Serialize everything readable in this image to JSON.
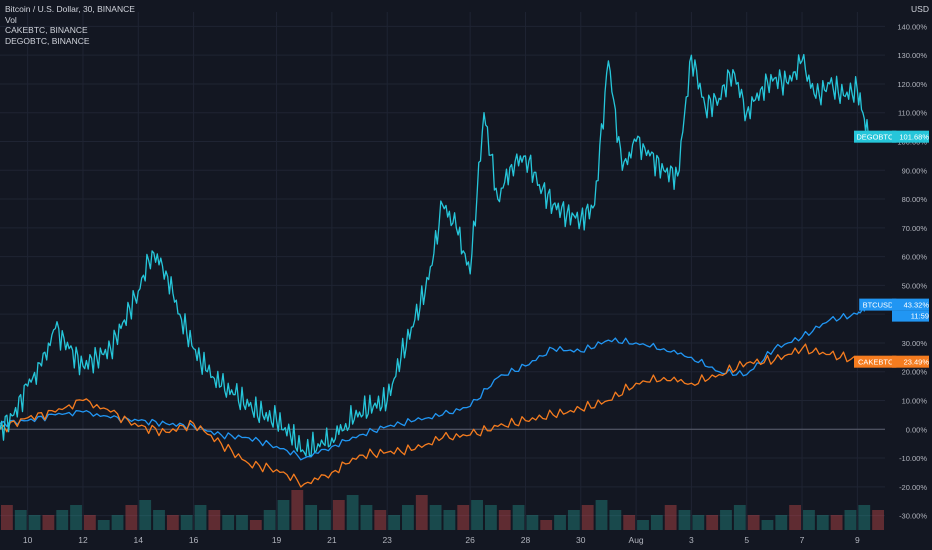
{
  "legend": {
    "main": "Bitcoin / U.S. Dollar, 30, BINANCE",
    "vol": "Vol",
    "s2": "CAKEBTC, BINANCE",
    "s3": "DEGOBTC, BINANCE"
  },
  "currency_label": "USD",
  "colors": {
    "background": "#131722",
    "grid": "#1f2433",
    "btc": "#2196f3",
    "cake": "#f57c1f",
    "dego": "#26c6da",
    "vol_up": "#26a69a",
    "vol_down": "#ef5350",
    "zero_line": "#5d6170"
  },
  "chart_data": {
    "type": "line",
    "y_unit": "percent change",
    "ylim": [
      -35,
      145
    ],
    "y_ticks": [
      "140.00%",
      "130.00%",
      "120.00%",
      "110.00%",
      "100.00%",
      "90.00%",
      "80.00%",
      "70.00%",
      "60.00%",
      "50.00%",
      "40.00%",
      "30.00%",
      "20.00%",
      "10.00%",
      "0.00%",
      "-10.00%",
      "-20.00%",
      "-30.00%"
    ],
    "y_tick_values": [
      140,
      130,
      120,
      110,
      100,
      90,
      80,
      70,
      60,
      50,
      40,
      30,
      20,
      10,
      0,
      -10,
      -20,
      -30
    ],
    "x_ticks": [
      "10",
      "12",
      "14",
      "16",
      "19",
      "21",
      "23",
      "26",
      "28",
      "30",
      "Aug",
      "3",
      "5",
      "7",
      "9"
    ],
    "x_tick_days": [
      10,
      12,
      14,
      16,
      19,
      21,
      23,
      26,
      28,
      30,
      32,
      34,
      36,
      38,
      40
    ],
    "x_range_days": [
      9.0,
      41.0
    ],
    "grid": true,
    "series": [
      {
        "name": "BTCUSD",
        "color": "#2196f3",
        "last_label": "43.32%",
        "sub_label": "11:59",
        "x": [
          9.0,
          10.0,
          11.0,
          12.0,
          13.0,
          14.0,
          15.0,
          16.0,
          17.0,
          18.0,
          19.0,
          20.0,
          21.0,
          22.0,
          23.0,
          24.0,
          25.0,
          26.0,
          27.0,
          28.0,
          29.0,
          30.0,
          31.0,
          32.0,
          33.0,
          34.0,
          35.0,
          36.0,
          37.0,
          38.0,
          39.0,
          40.0,
          40.4
        ],
        "y": [
          2,
          3,
          5,
          6,
          4,
          3,
          2,
          1,
          -2,
          -3,
          -6,
          -10,
          -6,
          -2,
          1,
          3,
          5,
          8,
          18,
          22,
          28,
          27,
          31,
          30,
          28,
          25,
          20,
          19,
          28,
          32,
          38,
          40,
          43.32
        ]
      },
      {
        "name": "CAKEBTC",
        "color": "#f57c1f",
        "last_label": "23.49%",
        "x": [
          9.0,
          10.0,
          11.0,
          12.0,
          13.0,
          14.0,
          15.0,
          16.0,
          17.0,
          18.0,
          19.0,
          20.0,
          21.0,
          22.0,
          23.0,
          24.0,
          25.0,
          26.0,
          27.0,
          28.0,
          29.0,
          30.0,
          31.0,
          32.0,
          33.0,
          34.0,
          35.0,
          36.0,
          37.0,
          38.0,
          39.0,
          40.0,
          40.4
        ],
        "y": [
          0,
          4,
          6,
          10,
          6,
          1,
          -1,
          2,
          -5,
          -12,
          -14,
          -19,
          -15,
          -9,
          -8,
          -7,
          -3,
          -2,
          1,
          3,
          5,
          7,
          10,
          16,
          18,
          16,
          19,
          23,
          24,
          28,
          26,
          24,
          23.49
        ]
      },
      {
        "name": "DEGOBTC",
        "color": "#26c6da",
        "last_label": "101.68%",
        "x": [
          9.0,
          9.5,
          10.0,
          10.5,
          11.0,
          11.5,
          12.0,
          12.5,
          13.0,
          13.5,
          14.0,
          14.5,
          15.0,
          15.5,
          16.0,
          16.5,
          17.0,
          17.5,
          18.0,
          18.5,
          19.0,
          19.5,
          20.0,
          20.5,
          21.0,
          21.5,
          22.0,
          22.5,
          23.0,
          23.5,
          24.0,
          24.5,
          25.0,
          25.5,
          26.0,
          26.5,
          27.0,
          27.5,
          28.0,
          28.5,
          29.0,
          29.5,
          30.0,
          30.5,
          31.0,
          31.5,
          32.0,
          32.5,
          33.0,
          33.5,
          34.0,
          34.5,
          35.0,
          35.5,
          36.0,
          36.5,
          37.0,
          37.5,
          38.0,
          38.5,
          39.0,
          39.5,
          40.0,
          40.4
        ],
        "y": [
          0,
          5,
          15,
          22,
          35,
          28,
          22,
          25,
          28,
          38,
          48,
          62,
          55,
          40,
          28,
          20,
          15,
          12,
          8,
          5,
          3,
          -2,
          -8,
          -5,
          -3,
          2,
          6,
          8,
          10,
          25,
          38,
          52,
          78,
          70,
          54,
          110,
          80,
          92,
          95,
          85,
          78,
          75,
          73,
          78,
          128,
          90,
          100,
          95,
          90,
          88,
          130,
          112,
          115,
          125,
          110,
          118,
          122,
          120,
          128,
          115,
          120,
          116,
          118,
          101.68
        ]
      }
    ],
    "volume": {
      "note": "relative histogram heights (0-1) at the bottom, one bar per group",
      "values": [
        0.5,
        0.4,
        0.3,
        0.3,
        0.4,
        0.5,
        0.3,
        0.2,
        0.3,
        0.5,
        0.6,
        0.4,
        0.3,
        0.3,
        0.5,
        0.4,
        0.3,
        0.3,
        0.2,
        0.4,
        0.6,
        0.8,
        0.5,
        0.4,
        0.6,
        0.7,
        0.5,
        0.4,
        0.3,
        0.5,
        0.7,
        0.5,
        0.4,
        0.5,
        0.6,
        0.5,
        0.4,
        0.5,
        0.3,
        0.2,
        0.3,
        0.4,
        0.5,
        0.6,
        0.4,
        0.3,
        0.2,
        0.3,
        0.5,
        0.4,
        0.3,
        0.3,
        0.4,
        0.5,
        0.3,
        0.2,
        0.3,
        0.5,
        0.4,
        0.3,
        0.3,
        0.4,
        0.5,
        0.4
      ]
    }
  }
}
